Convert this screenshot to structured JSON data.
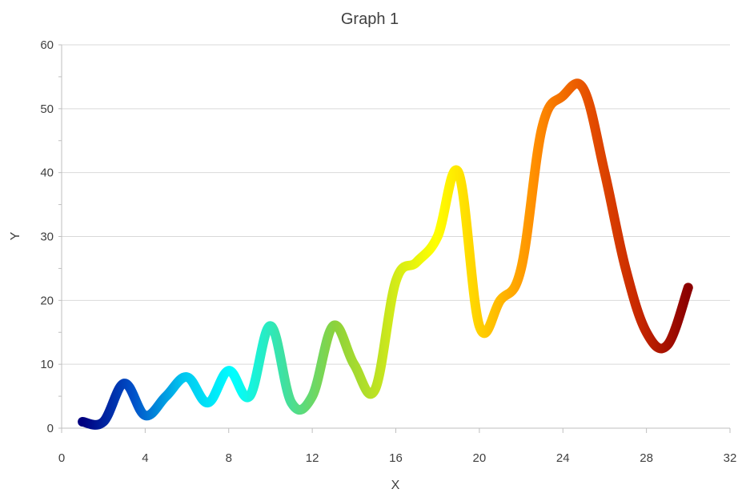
{
  "chart_data": {
    "type": "line",
    "title": "Graph 1",
    "xlabel": "X",
    "ylabel": "Y",
    "xlim": [
      0,
      32
    ],
    "ylim": [
      0,
      60
    ],
    "xticks": [
      0,
      4,
      8,
      12,
      16,
      20,
      24,
      28,
      32
    ],
    "xtick_labels": [
      "0",
      "4",
      "8",
      "12",
      "16",
      "20",
      "24",
      "28",
      "32"
    ],
    "yticks": [
      0,
      10,
      20,
      30,
      40,
      50,
      60
    ],
    "ytick_labels": [
      "0",
      "10",
      "20",
      "30",
      "40",
      "50",
      "60"
    ],
    "grid": true,
    "legend": false,
    "series": [
      {
        "x": [
          1,
          2,
          3,
          4,
          5,
          6,
          7,
          8,
          9,
          10,
          11,
          12,
          13,
          14,
          15,
          16,
          17,
          18,
          19,
          20,
          21,
          22,
          23,
          24,
          25,
          26,
          27,
          28,
          29,
          30
        ],
        "y": [
          1,
          1,
          7,
          2,
          5,
          8,
          4,
          9,
          5,
          16,
          4,
          5,
          16,
          10,
          6,
          23,
          26,
          30,
          40,
          16,
          20,
          25,
          47,
          52,
          53,
          40,
          25,
          15,
          13,
          22
        ],
        "gradient_colors": [
          "#00007f",
          "#0050c8",
          "#00c8f0",
          "#00ffff",
          "#40e0a0",
          "#8cd23c",
          "#c8e61e",
          "#ffff00",
          "#ffc800",
          "#ff8c00",
          "#e65000",
          "#c82800",
          "#8b0000"
        ]
      }
    ]
  }
}
